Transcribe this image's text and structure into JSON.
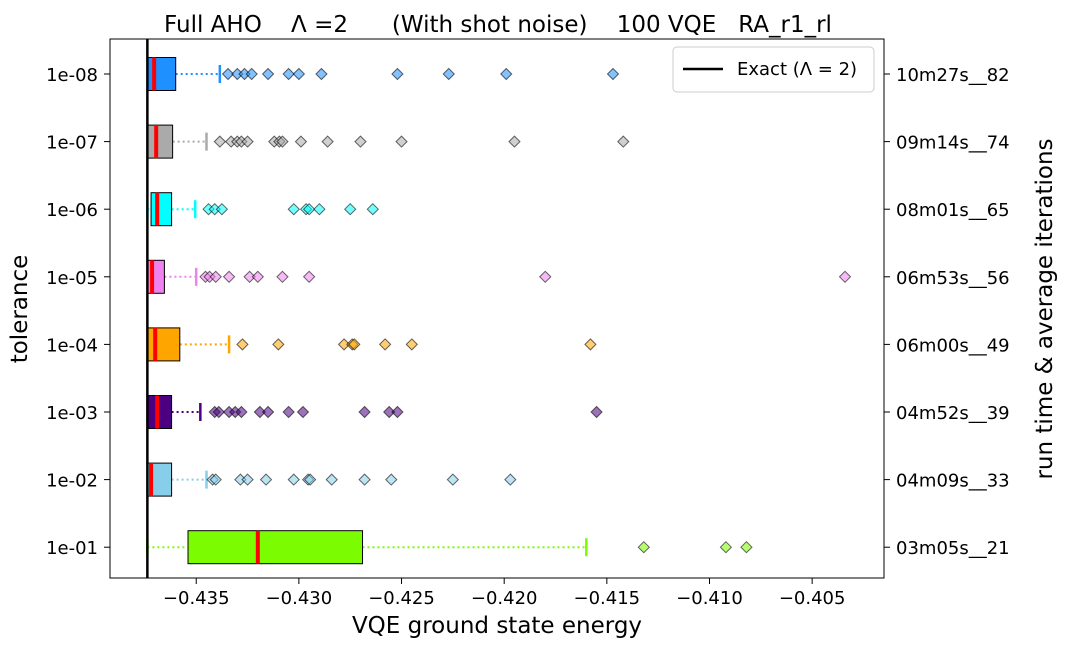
{
  "chart_data": {
    "type": "boxplot-horizontal",
    "title": "Full AHO    Λ =2      (With shot noise)    100 VQE   RA_r1_rl",
    "xlabel": "VQE ground state energy",
    "ylabel": "tolerance",
    "ylabel_right": "run time & average iterations",
    "xlim": [
      -0.4392,
      -0.4015
    ],
    "xticks": [
      -0.435,
      -0.43,
      -0.425,
      -0.42,
      -0.415,
      -0.41,
      -0.405
    ],
    "xtick_labels": [
      "−0.435",
      "−0.430",
      "−0.425",
      "−0.420",
      "−0.415",
      "−0.410",
      "−0.405"
    ],
    "exact_value": -0.43738,
    "legend": {
      "label": "Exact (Λ = 2)",
      "placement": "top-right"
    },
    "categories": [
      "1e-08",
      "1e-07",
      "1e-06",
      "1e-05",
      "1e-04",
      "1e-03",
      "1e-02",
      "1e-01"
    ],
    "right_labels": [
      "10m27s__82",
      "09m14s__74",
      "08m01s__65",
      "06m53s__56",
      "06m00s__49",
      "04m52s__39",
      "04m09s__33",
      "03m05s__21"
    ],
    "series": [
      {
        "tolerance": "1e-08",
        "color": "#1e90ff",
        "whislo": -0.43738,
        "q1": -0.43738,
        "median": -0.43705,
        "q3": -0.436,
        "whishi": -0.43385,
        "fliers": [
          -0.43345,
          -0.433,
          -0.43265,
          -0.4323,
          -0.4315,
          -0.4305,
          -0.43,
          -0.4289,
          -0.4252,
          -0.4227,
          -0.4199,
          -0.4147
        ]
      },
      {
        "tolerance": "1e-07",
        "color": "#aaaaaa",
        "whislo": -0.43738,
        "q1": -0.43738,
        "median": -0.43695,
        "q3": -0.43615,
        "whishi": -0.4345,
        "fliers": [
          -0.43385,
          -0.4333,
          -0.433,
          -0.4328,
          -0.4325,
          -0.4312,
          -0.43095,
          -0.4308,
          -0.4299,
          -0.4286,
          -0.427,
          -0.425,
          -0.4195,
          -0.4142
        ]
      },
      {
        "tolerance": "1e-06",
        "color": "#00ffff",
        "whislo": -0.43738,
        "q1": -0.4372,
        "median": -0.4369,
        "q3": -0.4362,
        "whishi": -0.43505,
        "fliers": [
          -0.4344,
          -0.4341,
          -0.43375,
          -0.43025,
          -0.42965,
          -0.4295,
          -0.429,
          -0.4275,
          -0.4264
        ]
      },
      {
        "tolerance": "1e-05",
        "color": "#ee82ee",
        "whislo": -0.43738,
        "q1": -0.43738,
        "median": -0.43715,
        "q3": -0.43655,
        "whishi": -0.435,
        "fliers": [
          -0.43455,
          -0.43435,
          -0.43405,
          -0.4334,
          -0.4324,
          -0.432,
          -0.4308,
          -0.4295,
          -0.418,
          -0.4034
        ]
      },
      {
        "tolerance": "1e-04",
        "color": "#ffa500",
        "whislo": -0.43738,
        "q1": -0.43738,
        "median": -0.437,
        "q3": -0.4358,
        "whishi": -0.4334,
        "fliers": [
          -0.43275,
          -0.431,
          -0.4278,
          -0.4274,
          -0.4273,
          -0.4258,
          -0.4245,
          -0.4158
        ]
      },
      {
        "tolerance": "1e-03",
        "color": "#4b0082",
        "whislo": -0.43738,
        "q1": -0.43738,
        "median": -0.4369,
        "q3": -0.4362,
        "whishi": -0.4348,
        "fliers": [
          -0.4341,
          -0.4339,
          -0.4334,
          -0.4331,
          -0.4328,
          -0.4319,
          -0.4315,
          -0.4305,
          -0.4298,
          -0.4268,
          -0.4256,
          -0.4252,
          -0.4155
        ]
      },
      {
        "tolerance": "1e-02",
        "color": "#87ceeb",
        "whislo": -0.43738,
        "q1": -0.43738,
        "median": -0.4372,
        "q3": -0.4362,
        "whishi": -0.4345,
        "fliers": [
          -0.4342,
          -0.43405,
          -0.43285,
          -0.4325,
          -0.4316,
          -0.43025,
          -0.42955,
          -0.42945,
          -0.4284,
          -0.4268,
          -0.4255,
          -0.4225,
          -0.4197
        ]
      },
      {
        "tolerance": "1e-01",
        "color": "#7cfc00",
        "whislo": -0.43738,
        "q1": -0.4354,
        "median": -0.432,
        "q3": -0.4269,
        "whishi": -0.416,
        "fliers": [
          -0.4132,
          -0.4092,
          -0.4082
        ]
      }
    ]
  }
}
